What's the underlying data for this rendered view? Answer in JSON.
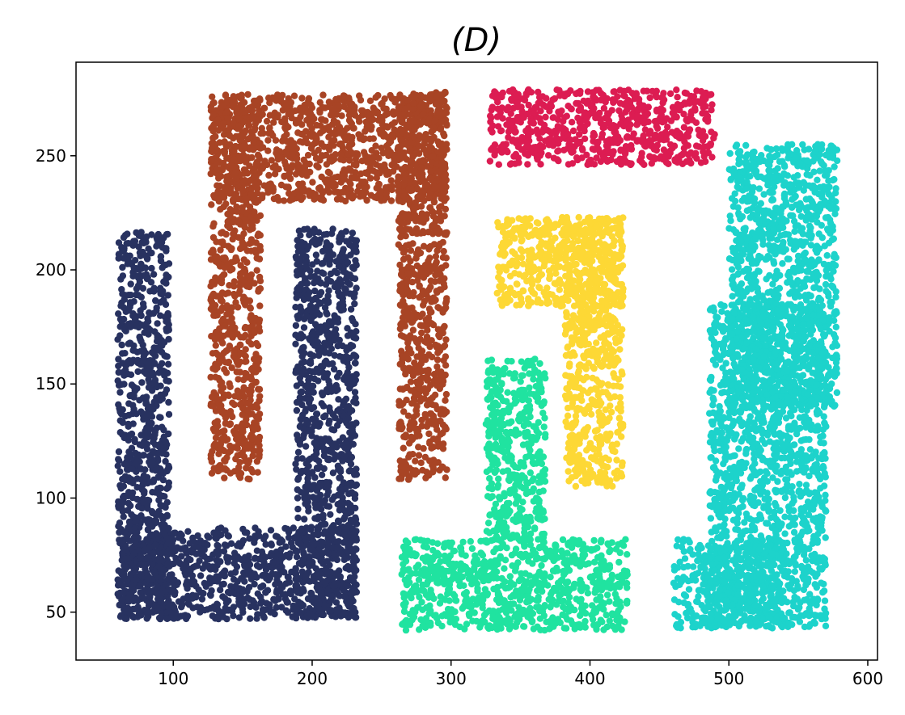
{
  "chart_data": {
    "type": "scatter",
    "title": "(D)",
    "xlabel": "",
    "ylabel": "",
    "xlim": [
      30,
      607
    ],
    "ylim": [
      29,
      291
    ],
    "xticks": [
      100,
      200,
      300,
      400,
      500,
      600
    ],
    "yticks": [
      50,
      100,
      150,
      200,
      250
    ],
    "grid": false,
    "legend": "none",
    "series": [
      {
        "color": "#283260",
        "shape": "U",
        "regions": [
          {
            "x": [
              60,
              97
            ],
            "y": [
              47,
              217
            ]
          },
          {
            "x": [
              60,
              232
            ],
            "y": [
              47,
              87
            ]
          },
          {
            "x": [
              188,
              232
            ],
            "y": [
              47,
              218
            ]
          }
        ]
      },
      {
        "color": "#A84425",
        "shape": "inverted U",
        "regions": [
          {
            "x": [
              127,
              163
            ],
            "y": [
              108,
              276
            ]
          },
          {
            "x": [
              127,
              297
            ],
            "y": [
              230,
              277
            ]
          },
          {
            "x": [
              262,
              297
            ],
            "y": [
              108,
              278
            ]
          }
        ]
      },
      {
        "color": "#DC1C52",
        "shape": "rectangle",
        "regions": [
          {
            "x": [
              328,
              490
            ],
            "y": [
              246,
              279
            ]
          }
        ]
      },
      {
        "color": "#FDD835",
        "shape": "number 7",
        "regions": [
          {
            "x": [
              333,
              424
            ],
            "y": [
              184,
              223
            ]
          },
          {
            "x": [
              382,
              424
            ],
            "y": [
              105,
              223
            ]
          }
        ]
      },
      {
        "color": "#20E3A0",
        "shape": "inverted T",
        "regions": [
          {
            "x": [
              325,
              368
            ],
            "y": [
              80,
              161
            ]
          },
          {
            "x": [
              264,
              427
            ],
            "y": [
              42,
              82
            ]
          }
        ]
      },
      {
        "color": "#1DD3CB",
        "shape": "boot",
        "regions": [
          {
            "x": [
              460,
              540
            ],
            "y": [
              43,
              82
            ]
          },
          {
            "x": [
              486,
              570
            ],
            "y": [
              43,
              185
            ]
          },
          {
            "x": [
              500,
              578
            ],
            "y": [
              140,
              255
            ]
          }
        ]
      }
    ]
  }
}
